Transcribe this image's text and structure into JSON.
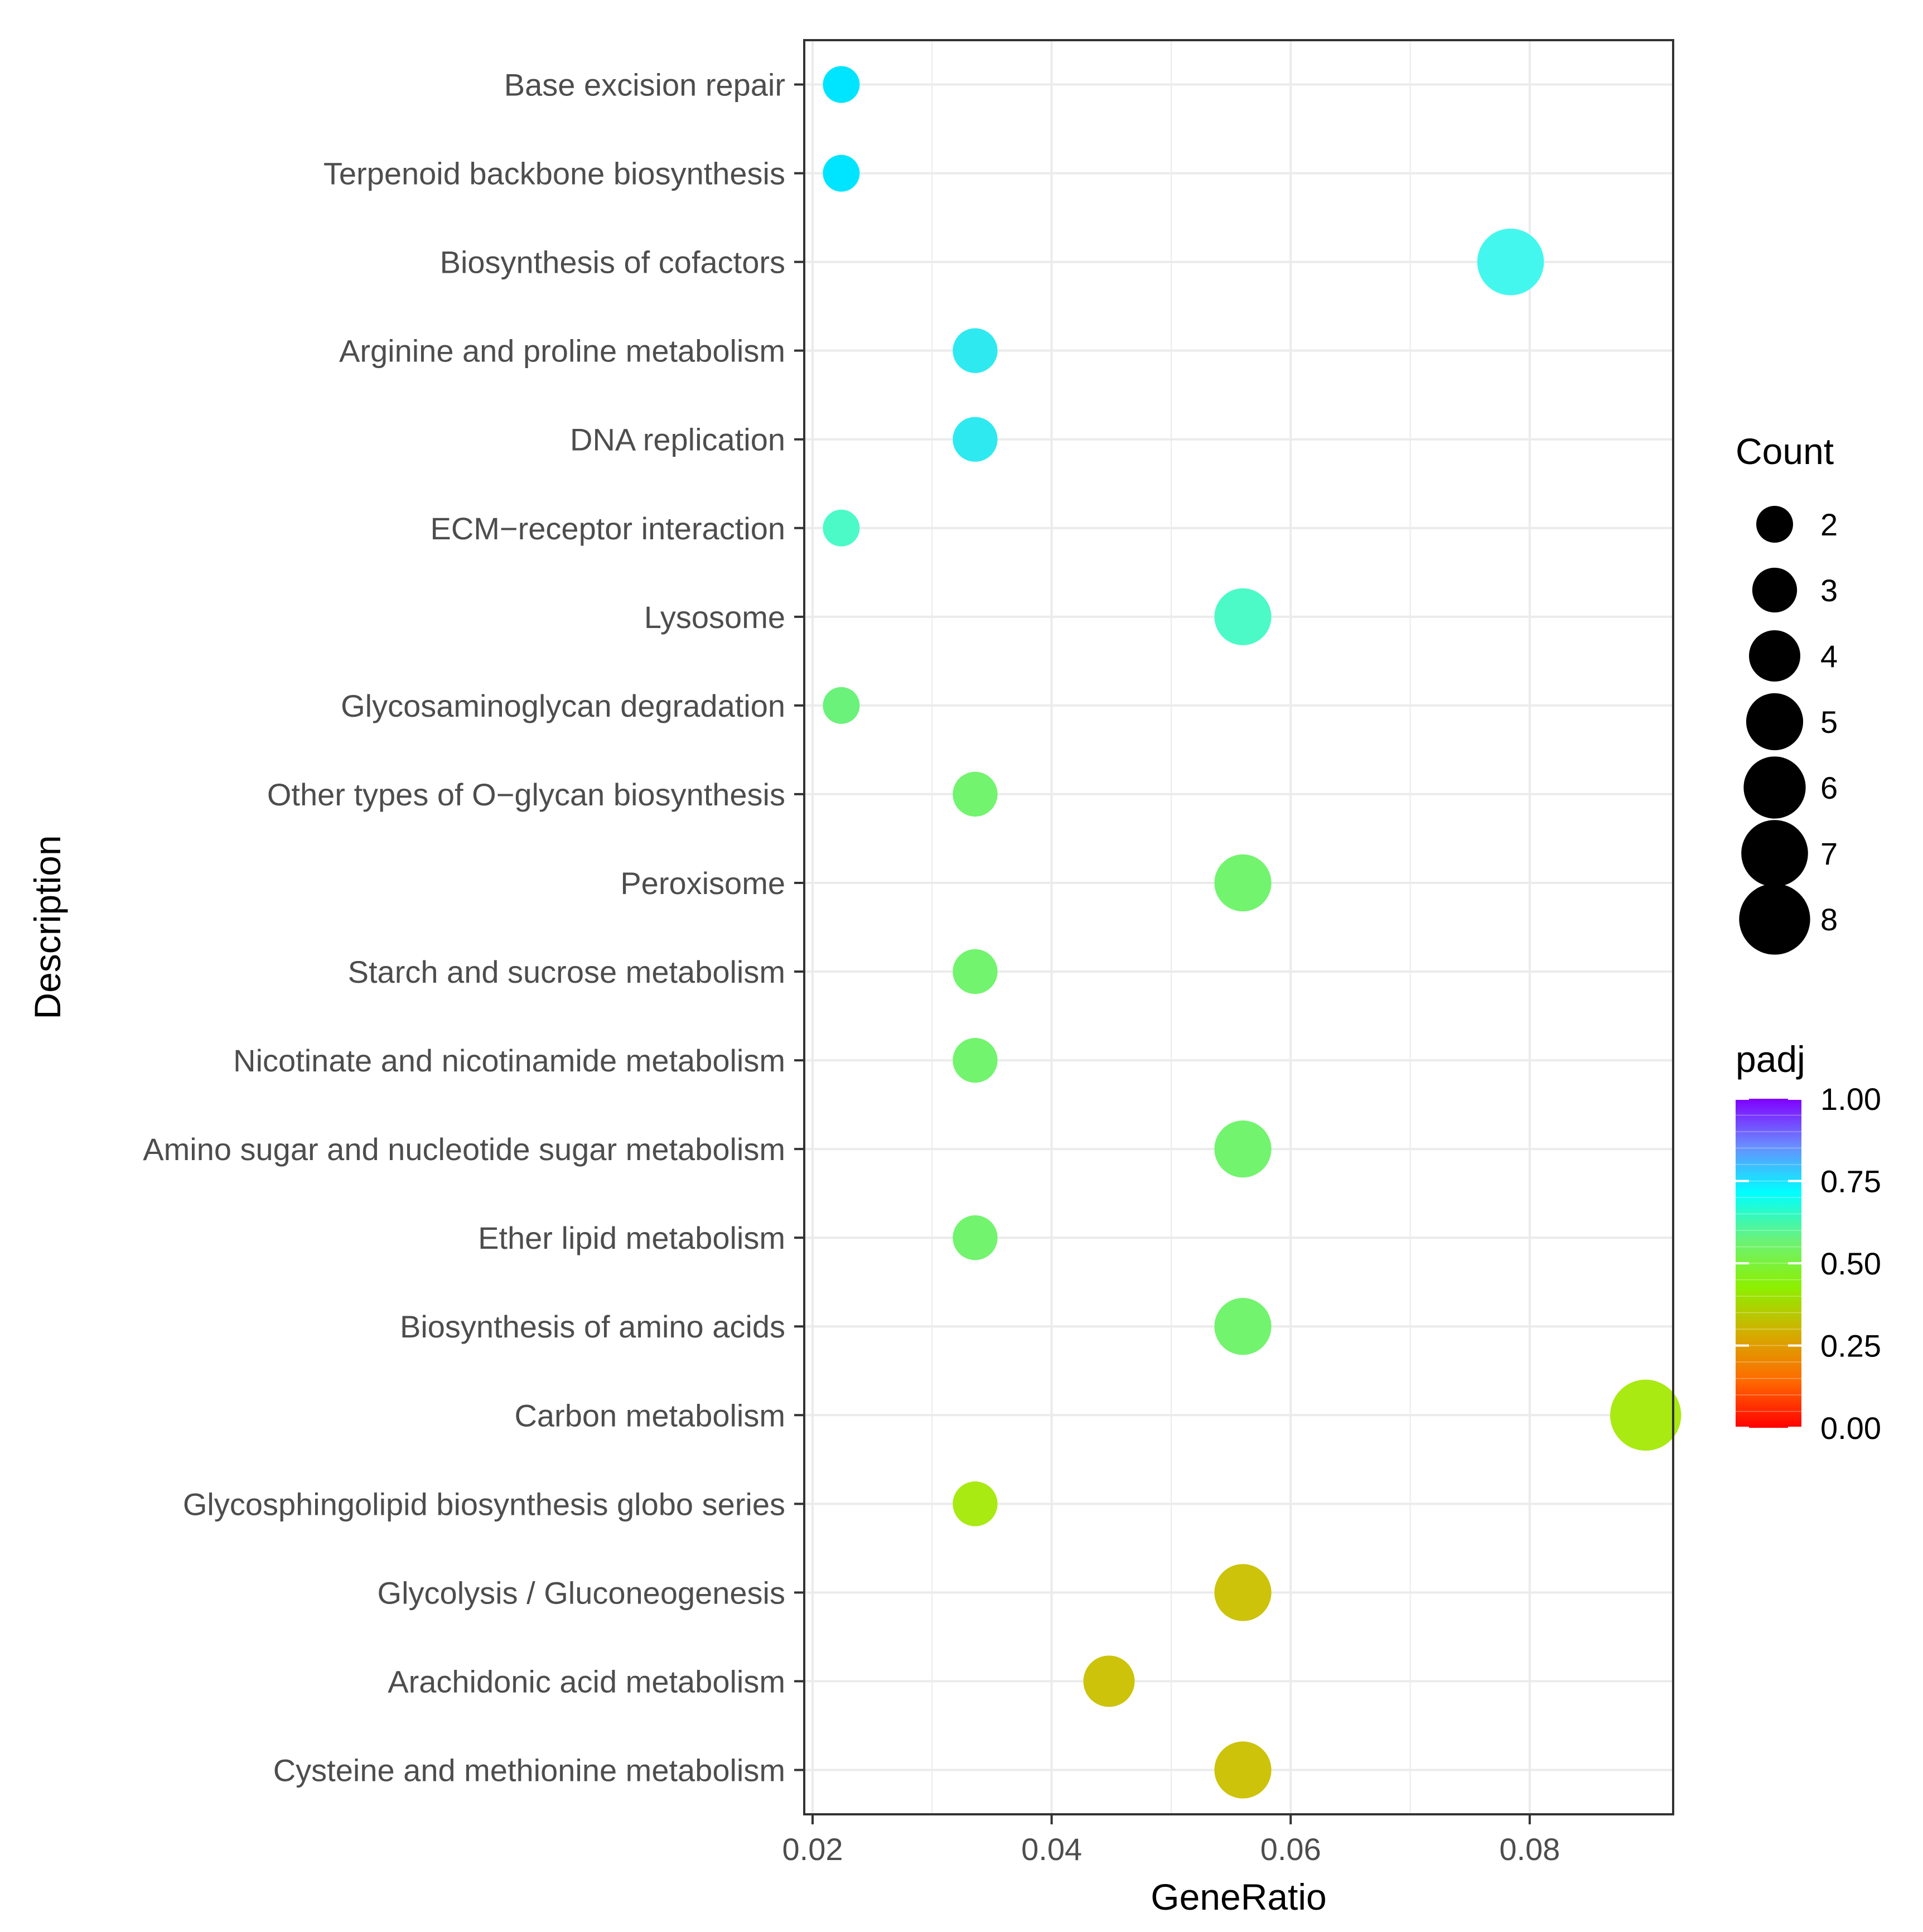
{
  "chart_data": {
    "type": "scatter",
    "xlabel": "GeneRatio",
    "ylabel": "Description",
    "xlim": [
      0.0193,
      0.092
    ],
    "x_ticks": [
      "0.02",
      "0.04",
      "0.06",
      "0.08"
    ],
    "x_tick_values": [
      0.02,
      0.04,
      0.06,
      0.08
    ],
    "grid": true,
    "legend_position": "right",
    "points": [
      {
        "label": "Base excision repair",
        "gene_ratio": 0.0224,
        "count": 2,
        "padj": 0.73,
        "color": "#00e5ff"
      },
      {
        "label": "Terpenoid backbone biosynthesis",
        "gene_ratio": 0.0224,
        "count": 2,
        "padj": 0.73,
        "color": "#00e5ff"
      },
      {
        "label": "Biosynthesis of cofactors",
        "gene_ratio": 0.0784,
        "count": 7,
        "padj": 0.65,
        "color": "#44f7ee"
      },
      {
        "label": "Arginine and proline metabolism",
        "gene_ratio": 0.0336,
        "count": 3,
        "padj": 0.68,
        "color": "#2fe9f0"
      },
      {
        "label": "DNA replication",
        "gene_ratio": 0.0336,
        "count": 3,
        "padj": 0.68,
        "color": "#2fe9f0"
      },
      {
        "label": "ECM−receptor interaction",
        "gene_ratio": 0.0224,
        "count": 2,
        "padj": 0.58,
        "color": "#4cfac8"
      },
      {
        "label": "Lysosome",
        "gene_ratio": 0.056,
        "count": 5,
        "padj": 0.58,
        "color": "#4cfac8"
      },
      {
        "label": "Glycosaminoglycan degradation",
        "gene_ratio": 0.0224,
        "count": 2,
        "padj": 0.46,
        "color": "#6af27a"
      },
      {
        "label": "Other types of O−glycan biosynthesis",
        "gene_ratio": 0.0336,
        "count": 3,
        "padj": 0.45,
        "color": "#72f46e"
      },
      {
        "label": "Peroxisome",
        "gene_ratio": 0.056,
        "count": 5,
        "padj": 0.45,
        "color": "#72f46e"
      },
      {
        "label": "Starch and sucrose metabolism",
        "gene_ratio": 0.0336,
        "count": 3,
        "padj": 0.45,
        "color": "#72f46e"
      },
      {
        "label": "Nicotinate and nicotinamide metabolism",
        "gene_ratio": 0.0336,
        "count": 3,
        "padj": 0.45,
        "color": "#72f46e"
      },
      {
        "label": "Amino sugar and nucleotide sugar metabolism",
        "gene_ratio": 0.056,
        "count": 5,
        "padj": 0.45,
        "color": "#72f46e"
      },
      {
        "label": "Ether lipid metabolism",
        "gene_ratio": 0.0336,
        "count": 3,
        "padj": 0.45,
        "color": "#72f46e"
      },
      {
        "label": "Biosynthesis of amino acids",
        "gene_ratio": 0.056,
        "count": 5,
        "padj": 0.45,
        "color": "#72f46e"
      },
      {
        "label": "Carbon metabolism",
        "gene_ratio": 0.0897,
        "count": 8,
        "padj": 0.3,
        "color": "#a8ea12"
      },
      {
        "label": "Glycosphingolipid biosynthesis globo series",
        "gene_ratio": 0.0336,
        "count": 3,
        "padj": 0.3,
        "color": "#a8ea12"
      },
      {
        "label": "Glycolysis / Gluconeogenesis",
        "gene_ratio": 0.056,
        "count": 5,
        "padj": 0.2,
        "color": "#ccc30a"
      },
      {
        "label": "Arachidonic acid metabolism",
        "gene_ratio": 0.0448,
        "count": 4,
        "padj": 0.2,
        "color": "#ccc30a"
      },
      {
        "label": "Cysteine and methionine metabolism",
        "gene_ratio": 0.056,
        "count": 5,
        "padj": 0.2,
        "color": "#ccc30a"
      }
    ],
    "legend_count": {
      "title": "Count",
      "values": [
        2,
        3,
        4,
        5,
        6,
        7,
        8
      ],
      "labels": [
        "2",
        "3",
        "4",
        "5",
        "6",
        "7",
        "8"
      ]
    },
    "legend_padj": {
      "title": "padj",
      "range": [
        0,
        1
      ],
      "tick_labels": [
        "1.00",
        "0.75",
        "0.50",
        "0.25",
        "0.00"
      ],
      "tick_values": [
        1.0,
        0.75,
        0.5,
        0.25,
        0.0
      ],
      "colors": [
        "#ff0000",
        "#ff6a00",
        "#d4ad00",
        "#8cf000",
        "#6af27a",
        "#00ffff",
        "#6a8cff",
        "#8000ff"
      ]
    }
  }
}
